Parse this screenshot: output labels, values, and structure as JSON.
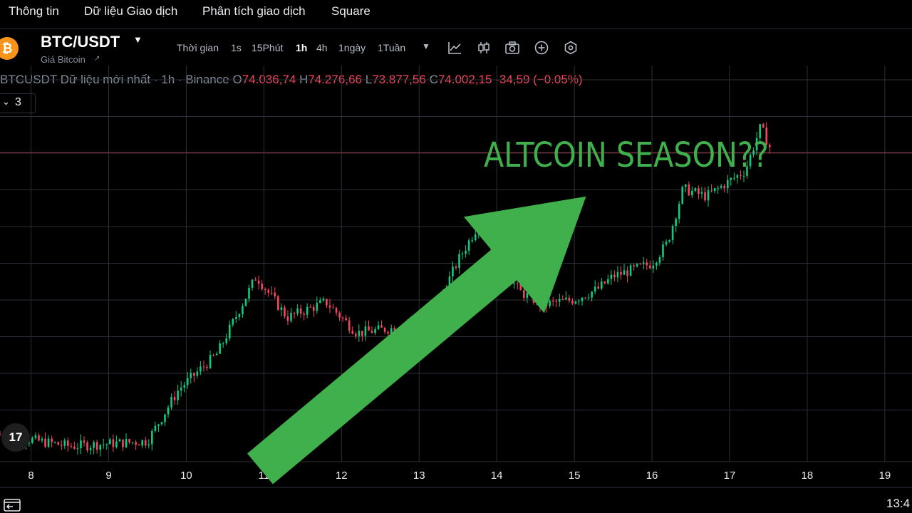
{
  "nav": {
    "items": [
      "Thông tin",
      "Dữ liệu Giao dịch",
      "Phân tích giao dịch",
      "Square"
    ]
  },
  "header": {
    "pair": "BTC/USDT",
    "coin_icon": "₿",
    "subtitle": "Giá Bitcoin",
    "timeframe_label": "Thời gian",
    "timeframes": [
      "1s",
      "15Phút",
      "1h",
      "4h",
      "1ngày",
      "1Tuần"
    ],
    "active_timeframe": "1h",
    "tools": [
      "line-chart-icon",
      "candlestick-icon",
      "camera-icon",
      "plus-circle-icon",
      "settings-hex-icon"
    ]
  },
  "ohlc": {
    "symbol_text": "BTCUSDT Dữ liệu mới nhất · 1h · Binance",
    "o_label": "O",
    "o": "74.036,74",
    "h_label": "H",
    "h": "74.276,66",
    "l_label": "L",
    "l": "73.877,56",
    "c_label": "C",
    "c": "74.002,15",
    "change": "-34,59 (−0.05%)"
  },
  "indicator_toggle": {
    "count": "3"
  },
  "annotation": "ALTCOIN SEASON??",
  "tv_logo": "17",
  "clock": "13:4",
  "colors": {
    "up": "#0ecb81",
    "down": "#f6465d",
    "arrow": "#3fb04b",
    "grid": "#2b2f36",
    "price_line": "#f6465d"
  },
  "chart_data": {
    "type": "candlestick",
    "x_label_ticks": [
      "8",
      "9",
      "10",
      "11",
      "12",
      "13",
      "14",
      "15",
      "16",
      "17",
      "18",
      "19"
    ],
    "x_range_days": [
      7.6,
      19.35
    ],
    "y_range": [
      62000,
      75500
    ],
    "current_price": 74002.15,
    "trend_path": [
      [
        7.5,
        63100
      ],
      [
        8.5,
        62600
      ],
      [
        9.5,
        62800
      ],
      [
        9.9,
        64800
      ],
      [
        10.4,
        66200
      ],
      [
        10.9,
        69200
      ],
      [
        11.3,
        67600
      ],
      [
        11.8,
        68200
      ],
      [
        12.2,
        67000
      ],
      [
        12.7,
        67200
      ],
      [
        13.2,
        67900
      ],
      [
        13.5,
        69800
      ],
      [
        13.8,
        71400
      ],
      [
        14.0,
        69800
      ],
      [
        14.3,
        68600
      ],
      [
        14.6,
        68100
      ],
      [
        15.0,
        68300
      ],
      [
        15.3,
        68700
      ],
      [
        15.5,
        69200
      ],
      [
        16.0,
        69700
      ],
      [
        16.2,
        70500
      ],
      [
        16.4,
        72600
      ],
      [
        16.7,
        72300
      ],
      [
        17.0,
        72900
      ],
      [
        17.2,
        73300
      ],
      [
        17.4,
        75000
      ],
      [
        17.55,
        74002
      ]
    ],
    "overlay_arrow": {
      "from": [
        10.95,
        62000
      ],
      "to": [
        15.15,
        72300
      ]
    }
  }
}
